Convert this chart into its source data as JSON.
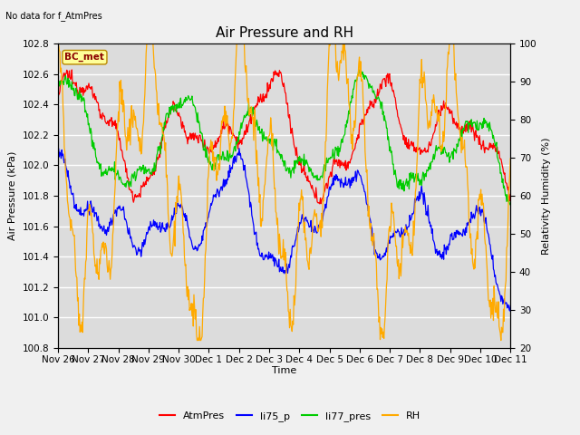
{
  "title": "Air Pressure and RH",
  "top_left_text": "No data for f_AtmPres",
  "station_label": "BC_met",
  "xlabel": "Time",
  "ylabel_left": "Air Pressure (kPa)",
  "ylabel_right": "Relativity Humidity (%)",
  "ylim_left": [
    100.8,
    102.8
  ],
  "ylim_right": [
    20,
    100
  ],
  "yticks_left": [
    100.8,
    101.0,
    101.2,
    101.4,
    101.6,
    101.8,
    102.0,
    102.2,
    102.4,
    102.6,
    102.8
  ],
  "yticks_right": [
    20,
    30,
    40,
    50,
    60,
    70,
    80,
    90,
    100
  ],
  "xtick_labels": [
    "Nov 26",
    "Nov 27",
    "Nov 28",
    "Nov 29",
    "Nov 30",
    "Dec 1",
    "Dec 2",
    "Dec 3",
    "Dec 4",
    "Dec 5",
    "Dec 6",
    "Dec 7",
    "Dec 8",
    "Dec 9",
    "Dec 10",
    "Dec 11"
  ],
  "legend_labels": [
    "AtmPres",
    "li75_p",
    "li77_pres",
    "RH"
  ],
  "colors": {
    "AtmPres": "#ff0000",
    "li75_p": "#0000ff",
    "li77_pres": "#00cc00",
    "RH": "#ffaa00"
  },
  "bg_color": "#dcdcdc",
  "fig_color": "#f0f0f0",
  "grid_color": "#ffffff",
  "title_fontsize": 11,
  "label_fontsize": 8,
  "tick_fontsize": 7.5,
  "legend_fontsize": 8
}
